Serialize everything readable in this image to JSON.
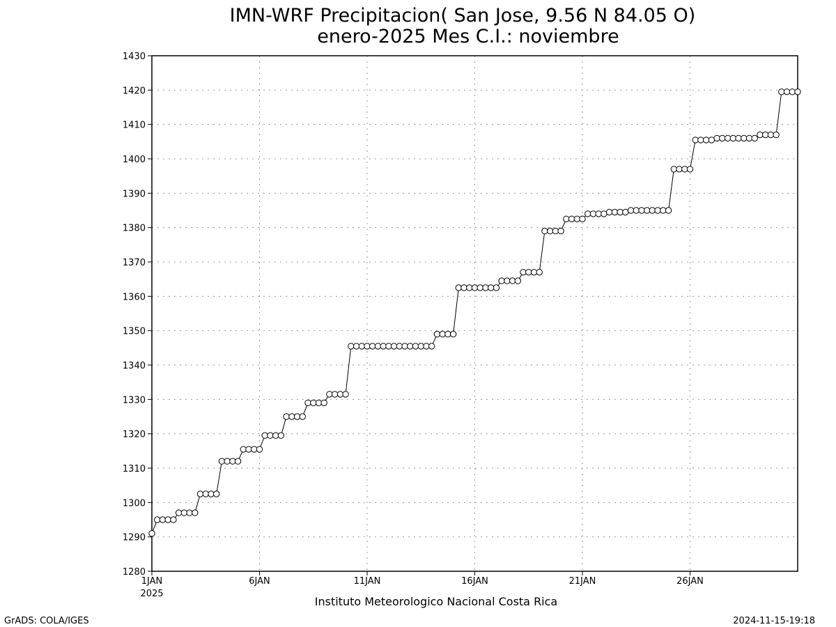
{
  "chart_data": {
    "type": "line",
    "title": "IMN-WRF  Precipitacion( San Jose, 9.56  N 84.05  O)",
    "subtitle": "enero-2025 Mes C.I.: noviembre",
    "xlabel": "",
    "ylabel": "",
    "ylim": [
      1280,
      1430
    ],
    "yticks": [
      "1280",
      "1290",
      "1300",
      "1310",
      "1320",
      "1330",
      "1340",
      "1350",
      "1360",
      "1370",
      "1380",
      "1390",
      "1400",
      "1410",
      "1420",
      "1430"
    ],
    "xticks": [
      {
        "day": 1,
        "label": "1JAN",
        "sublabel": "2025"
      },
      {
        "day": 6,
        "label": "6JAN",
        "sublabel": ""
      },
      {
        "day": 11,
        "label": "11JAN",
        "sublabel": ""
      },
      {
        "day": 16,
        "label": "16JAN",
        "sublabel": ""
      },
      {
        "day": 21,
        "label": "21JAN",
        "sublabel": ""
      },
      {
        "day": 26,
        "label": "26JAN",
        "sublabel": ""
      }
    ],
    "xlim_days": [
      1,
      31
    ],
    "grid": true,
    "marker": "open-circle",
    "time_step_hours": 6,
    "series": [
      {
        "values": [
          1291.0,
          1295.0,
          1295.0,
          1295.0,
          1295.0,
          1297.0,
          1297.0,
          1297.0,
          1297.0,
          1302.5,
          1302.5,
          1302.5,
          1302.5,
          1312.0,
          1312.0,
          1312.0,
          1312.0,
          1315.5,
          1315.5,
          1315.5,
          1315.5,
          1319.5,
          1319.5,
          1319.5,
          1319.5,
          1325.0,
          1325.0,
          1325.0,
          1325.0,
          1329.0,
          1329.0,
          1329.0,
          1329.0,
          1331.5,
          1331.5,
          1331.5,
          1331.5,
          1345.5,
          1345.5,
          1345.5,
          1345.5,
          1345.5,
          1345.5,
          1345.5,
          1345.5,
          1345.5,
          1345.5,
          1345.5,
          1345.5,
          1345.5,
          1345.5,
          1345.5,
          1345.5,
          1349.0,
          1349.0,
          1349.0,
          1349.0,
          1362.5,
          1362.5,
          1362.5,
          1362.5,
          1362.5,
          1362.5,
          1362.5,
          1362.5,
          1364.5,
          1364.5,
          1364.5,
          1364.5,
          1367.0,
          1367.0,
          1367.0,
          1367.0,
          1379.0,
          1379.0,
          1379.0,
          1379.0,
          1382.5,
          1382.5,
          1382.5,
          1382.5,
          1384.0,
          1384.0,
          1384.0,
          1384.0,
          1384.5,
          1384.5,
          1384.5,
          1384.5,
          1385.0,
          1385.0,
          1385.0,
          1385.0,
          1385.0,
          1385.0,
          1385.0,
          1385.0,
          1397.0,
          1397.0,
          1397.0,
          1397.0,
          1405.5,
          1405.5,
          1405.5,
          1405.5,
          1406.0,
          1406.0,
          1406.0,
          1406.0,
          1406.0,
          1406.0,
          1406.0,
          1406.0,
          1407.0,
          1407.0,
          1407.0,
          1407.0,
          1419.5,
          1419.5,
          1419.5,
          1419.5
        ]
      }
    ]
  },
  "footer": {
    "institution": "Instituto Meteorologico Nacional Costa Rica",
    "software": "GrADS: COLA/IGES",
    "timestamp": "2024-11-15-19:18"
  }
}
